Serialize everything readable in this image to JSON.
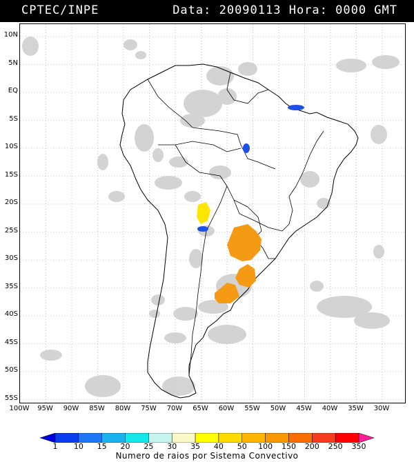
{
  "header": {
    "agency": "CPTEC/INPE",
    "datetime": "Data: 20090113 Hora: 0000 GMT"
  },
  "axes": {
    "latitudes": [
      "10N",
      "5N",
      "EQ",
      "5S",
      "10S",
      "15S",
      "20S",
      "25S",
      "30S",
      "35S",
      "40S",
      "45S",
      "50S",
      "55S"
    ],
    "longitudes": [
      "100W",
      "95W",
      "90W",
      "85W",
      "80W",
      "75W",
      "70W",
      "65W",
      "60W",
      "55W",
      "50W",
      "45W",
      "40W",
      "35W",
      "30W"
    ]
  },
  "legend": {
    "ticks": [
      "1",
      "10",
      "15",
      "20",
      "25",
      "30",
      "35",
      "40",
      "50",
      "100",
      "150",
      "200",
      "250",
      "350"
    ],
    "colors": [
      "#0000dd",
      "#0a3cf0",
      "#1e78f5",
      "#19b4f0",
      "#14e6ea",
      "#c8f5f0",
      "#fafac8",
      "#ffff00",
      "#ffdc00",
      "#ffb400",
      "#fa9600",
      "#fa6e00",
      "#f53c1e",
      "#ff0000",
      "#ff1e96"
    ],
    "caption": "Numero de raios por Sistema Convectivo"
  },
  "colors": {
    "clouds": "#c8c8c8",
    "grid": "#9a9a9a",
    "coast": "#000000"
  },
  "convective_systems": [
    {
      "region": "northeast-brazil",
      "class": "1-10"
    },
    {
      "region": "central-brazil",
      "class": "1-10"
    },
    {
      "region": "chaco-north",
      "class": "40-50"
    },
    {
      "region": "chaco-south",
      "class": "1-10"
    },
    {
      "region": "paraguay-parana",
      "class": "100-150"
    },
    {
      "region": "uruguay",
      "class": "100-150"
    },
    {
      "region": "buenos-aires",
      "class": "100-150"
    }
  ]
}
